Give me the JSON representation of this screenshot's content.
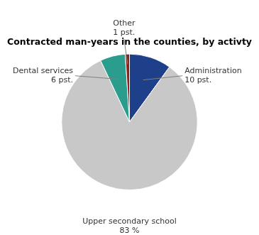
{
  "chart_data": {
    "type": "pie",
    "title": "Contracted man-years in the counties, by activty",
    "categories": [
      "Administration",
      "Upper secondary school",
      "Dental services",
      "Other"
    ],
    "values": [
      10,
      83,
      6,
      1
    ],
    "value_labels": [
      "10 pst.",
      "83 %",
      "6 pst.",
      "1 pst."
    ],
    "colors": [
      "#1e3f8a",
      "#c8c8c8",
      "#2a9d8f",
      "#8b2020"
    ],
    "data_labels": true
  }
}
